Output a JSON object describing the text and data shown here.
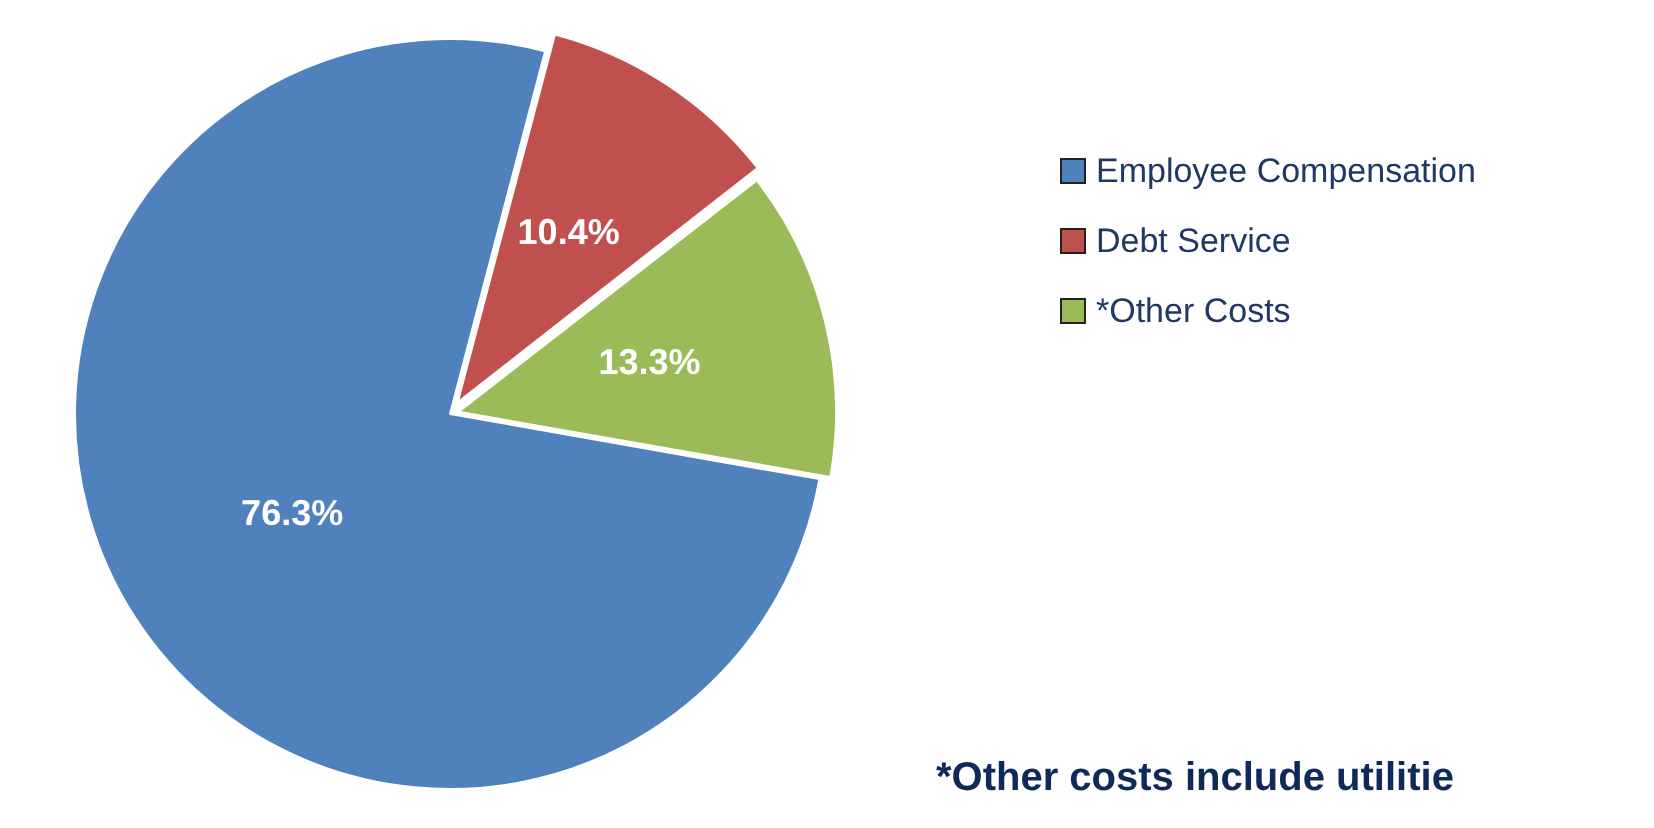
{
  "chart_data": {
    "type": "pie",
    "categories": [
      "Employee Compensation",
      "Debt Service",
      "*Other Costs"
    ],
    "values": [
      76.3,
      10.4,
      13.3
    ],
    "colors": [
      "#4f81bd",
      "#c0504d",
      "#9bbb59"
    ],
    "value_labels": [
      "76.3%",
      "10.4%",
      "13.3%"
    ],
    "legend": "right",
    "annotations": [
      "*Other costs include utilitie"
    ]
  }
}
